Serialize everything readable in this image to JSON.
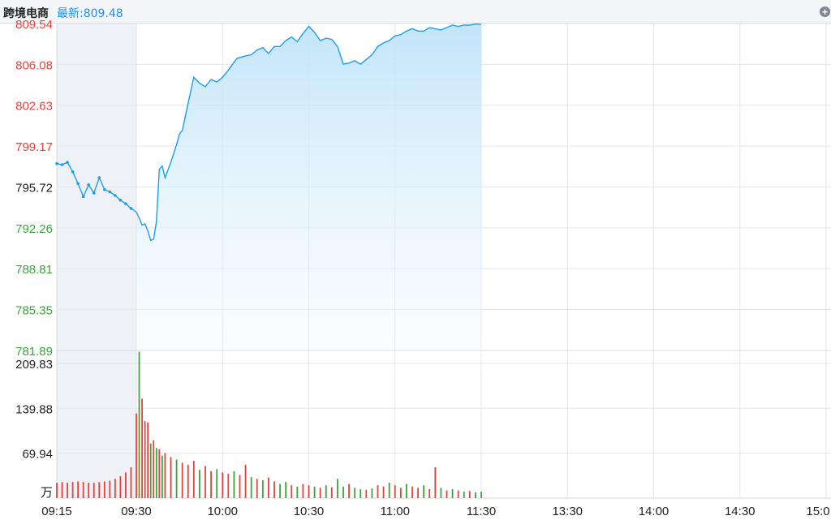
{
  "header": {
    "stock_name": "跨境电商",
    "latest_label": "最新:809.48",
    "add_icon": "plus-circle-icon"
  },
  "colors": {
    "up": "#e8413c",
    "down": "#3aa53a",
    "neutral": "#222222",
    "line": "#1e9cf0",
    "grid": "#e3e6ea",
    "preopen_shade": "#eef1f5"
  },
  "chart_data": [
    {
      "type": "line",
      "title": "",
      "xlabel": "",
      "ylabel": "",
      "prev_close": 795.72,
      "ylim": [
        781.89,
        809.54
      ],
      "y_ticks": [
        "809.54",
        "806.08",
        "802.63",
        "799.17",
        "795.72",
        "792.26",
        "788.81",
        "785.35",
        "781.89"
      ],
      "x_ticks": [
        "09:15",
        "09:30",
        "10:00",
        "10:30",
        "11:00",
        "11:30",
        "13:30",
        "14:00",
        "14:30",
        "15:0"
      ],
      "series": [
        {
          "name": "",
          "x": [
            "09:15",
            "09:16",
            "09:17",
            "09:18",
            "09:19",
            "09:20",
            "09:21",
            "09:22",
            "09:23",
            "09:24",
            "09:25",
            "09:26",
            "09:27",
            "09:28",
            "09:29",
            "09:30",
            "09:31",
            "09:32",
            "09:33",
            "09:34",
            "09:35",
            "09:36",
            "09:37",
            "09:38",
            "09:39",
            "09:40",
            "09:42",
            "09:44",
            "09:45",
            "09:46",
            "09:48",
            "09:50",
            "09:52",
            "09:54",
            "09:56",
            "09:58",
            "10:00",
            "10:02",
            "10:05",
            "10:08",
            "10:10",
            "10:12",
            "10:14",
            "10:16",
            "10:18",
            "10:20",
            "10:22",
            "10:24",
            "10:26",
            "10:28",
            "10:30",
            "10:32",
            "10:34",
            "10:36",
            "10:38",
            "10:40",
            "10:42",
            "10:44",
            "10:46",
            "10:48",
            "10:50",
            "10:52",
            "10:54",
            "10:56",
            "10:58",
            "11:00",
            "11:02",
            "11:04",
            "11:06",
            "11:08",
            "11:10",
            "11:12",
            "11:14",
            "11:16",
            "11:18",
            "11:20",
            "11:22",
            "11:24",
            "11:26",
            "11:28",
            "11:30"
          ],
          "y": [
            797.7,
            797.6,
            797.8,
            797.0,
            796.0,
            794.9,
            795.9,
            795.2,
            796.5,
            795.5,
            795.3,
            795.0,
            794.6,
            794.3,
            793.9,
            793.6,
            793.1,
            792.5,
            792.6,
            792.0,
            791.2,
            791.3,
            792.8,
            797.2,
            797.5,
            796.5,
            797.8,
            799.3,
            800.2,
            800.5,
            802.8,
            805.0,
            804.5,
            804.2,
            804.8,
            804.6,
            805.0,
            805.6,
            806.6,
            806.8,
            806.9,
            807.3,
            807.5,
            807.0,
            807.6,
            807.6,
            808.1,
            808.4,
            808.0,
            808.7,
            809.3,
            808.8,
            808.1,
            808.3,
            808.2,
            807.6,
            806.1,
            806.2,
            806.4,
            806.1,
            806.5,
            806.9,
            807.6,
            807.9,
            808.1,
            808.5,
            808.6,
            808.9,
            809.1,
            808.9,
            808.9,
            809.2,
            809.1,
            809.0,
            809.2,
            809.4,
            809.3,
            809.4,
            809.4,
            809.5,
            809.48
          ]
        }
      ]
    },
    {
      "type": "bar",
      "title": "",
      "xlabel": "",
      "ylabel": "",
      "unit": "万",
      "ylim": [
        0,
        230
      ],
      "y_ticks": [
        "209.83",
        "139.88",
        "69.94"
      ],
      "bars": [
        {
          "t": "09:15",
          "v": 24,
          "c": "up"
        },
        {
          "t": "09:16",
          "v": 25,
          "c": "up"
        },
        {
          "t": "09:17",
          "v": 24,
          "c": "up"
        },
        {
          "t": "09:18",
          "v": 25,
          "c": "up"
        },
        {
          "t": "09:19",
          "v": 26,
          "c": "up"
        },
        {
          "t": "09:20",
          "v": 25,
          "c": "up"
        },
        {
          "t": "09:21",
          "v": 24,
          "c": "up"
        },
        {
          "t": "09:22",
          "v": 24,
          "c": "up"
        },
        {
          "t": "09:23",
          "v": 25,
          "c": "up"
        },
        {
          "t": "09:24",
          "v": 26,
          "c": "up"
        },
        {
          "t": "09:25",
          "v": 27,
          "c": "up"
        },
        {
          "t": "09:26",
          "v": 30,
          "c": "up"
        },
        {
          "t": "09:27",
          "v": 34,
          "c": "up"
        },
        {
          "t": "09:28",
          "v": 40,
          "c": "up"
        },
        {
          "t": "09:29",
          "v": 48,
          "c": "up"
        },
        {
          "t": "09:30",
          "v": 132,
          "c": "up"
        },
        {
          "t": "09:31",
          "v": 228,
          "c": "down"
        },
        {
          "t": "09:32",
          "v": 155,
          "c": "up"
        },
        {
          "t": "09:33",
          "v": 120,
          "c": "up"
        },
        {
          "t": "09:34",
          "v": 118,
          "c": "up"
        },
        {
          "t": "09:35",
          "v": 85,
          "c": "down"
        },
        {
          "t": "09:36",
          "v": 90,
          "c": "up"
        },
        {
          "t": "09:37",
          "v": 78,
          "c": "down"
        },
        {
          "t": "09:38",
          "v": 76,
          "c": "up"
        },
        {
          "t": "09:39",
          "v": 66,
          "c": "down"
        },
        {
          "t": "09:40",
          "v": 70,
          "c": "up"
        },
        {
          "t": "09:42",
          "v": 64,
          "c": "up"
        },
        {
          "t": "09:44",
          "v": 60,
          "c": "down"
        },
        {
          "t": "09:46",
          "v": 55,
          "c": "up"
        },
        {
          "t": "09:48",
          "v": 52,
          "c": "up"
        },
        {
          "t": "09:50",
          "v": 58,
          "c": "up"
        },
        {
          "t": "09:52",
          "v": 44,
          "c": "down"
        },
        {
          "t": "09:54",
          "v": 50,
          "c": "up"
        },
        {
          "t": "09:56",
          "v": 42,
          "c": "up"
        },
        {
          "t": "09:58",
          "v": 45,
          "c": "down"
        },
        {
          "t": "10:00",
          "v": 40,
          "c": "up"
        },
        {
          "t": "10:02",
          "v": 38,
          "c": "up"
        },
        {
          "t": "10:04",
          "v": 42,
          "c": "down"
        },
        {
          "t": "10:06",
          "v": 36,
          "c": "up"
        },
        {
          "t": "10:08",
          "v": 52,
          "c": "up"
        },
        {
          "t": "10:10",
          "v": 33,
          "c": "down"
        },
        {
          "t": "10:12",
          "v": 30,
          "c": "up"
        },
        {
          "t": "10:14",
          "v": 28,
          "c": "down"
        },
        {
          "t": "10:16",
          "v": 32,
          "c": "up"
        },
        {
          "t": "10:18",
          "v": 26,
          "c": "up"
        },
        {
          "t": "10:20",
          "v": 22,
          "c": "down"
        },
        {
          "t": "10:22",
          "v": 25,
          "c": "down"
        },
        {
          "t": "10:24",
          "v": 20,
          "c": "up"
        },
        {
          "t": "10:26",
          "v": 18,
          "c": "down"
        },
        {
          "t": "10:28",
          "v": 22,
          "c": "up"
        },
        {
          "t": "10:30",
          "v": 20,
          "c": "up"
        },
        {
          "t": "10:32",
          "v": 18,
          "c": "down"
        },
        {
          "t": "10:34",
          "v": 16,
          "c": "up"
        },
        {
          "t": "10:36",
          "v": 20,
          "c": "down"
        },
        {
          "t": "10:38",
          "v": 17,
          "c": "up"
        },
        {
          "t": "10:40",
          "v": 30,
          "c": "down"
        },
        {
          "t": "10:42",
          "v": 18,
          "c": "down"
        },
        {
          "t": "10:44",
          "v": 22,
          "c": "up"
        },
        {
          "t": "10:46",
          "v": 16,
          "c": "down"
        },
        {
          "t": "10:48",
          "v": 14,
          "c": "down"
        },
        {
          "t": "10:50",
          "v": 13,
          "c": "up"
        },
        {
          "t": "10:52",
          "v": 15,
          "c": "down"
        },
        {
          "t": "10:54",
          "v": 20,
          "c": "up"
        },
        {
          "t": "10:56",
          "v": 18,
          "c": "up"
        },
        {
          "t": "10:58",
          "v": 24,
          "c": "down"
        },
        {
          "t": "11:00",
          "v": 20,
          "c": "up"
        },
        {
          "t": "11:02",
          "v": 16,
          "c": "up"
        },
        {
          "t": "11:04",
          "v": 22,
          "c": "down"
        },
        {
          "t": "11:06",
          "v": 18,
          "c": "up"
        },
        {
          "t": "11:08",
          "v": 16,
          "c": "up"
        },
        {
          "t": "11:10",
          "v": 20,
          "c": "down"
        },
        {
          "t": "11:12",
          "v": 14,
          "c": "up"
        },
        {
          "t": "11:14",
          "v": 48,
          "c": "up"
        },
        {
          "t": "11:16",
          "v": 16,
          "c": "down"
        },
        {
          "t": "11:18",
          "v": 12,
          "c": "up"
        },
        {
          "t": "11:20",
          "v": 14,
          "c": "down"
        },
        {
          "t": "11:22",
          "v": 12,
          "c": "up"
        },
        {
          "t": "11:24",
          "v": 10,
          "c": "down"
        },
        {
          "t": "11:26",
          "v": 11,
          "c": "up"
        },
        {
          "t": "11:28",
          "v": 9,
          "c": "down"
        },
        {
          "t": "11:30",
          "v": 10,
          "c": "down"
        }
      ]
    }
  ]
}
